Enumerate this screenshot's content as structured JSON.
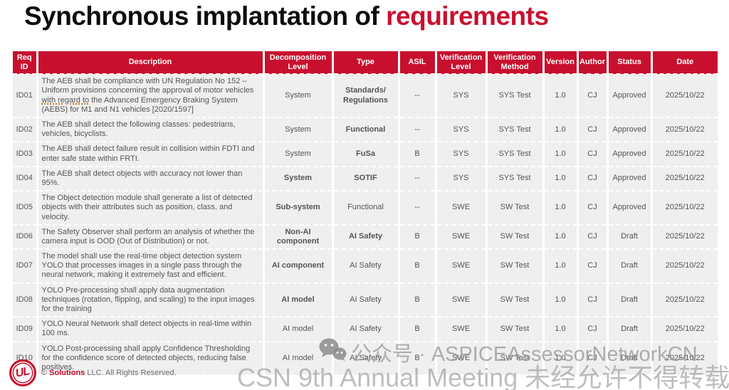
{
  "title": {
    "black": "Synchronous implantation of ",
    "red": "requirements"
  },
  "colors": {
    "brand_red": "#C8102E",
    "cell_bg": "#EFEFEF",
    "text_gray": "#555555"
  },
  "table": {
    "headers": [
      "Req ID",
      "Description",
      "Decomposition Level",
      "Type",
      "ASIL",
      "Verification Level",
      "Verification Method",
      "Version",
      "Author",
      "Status",
      "Date"
    ],
    "rows": [
      {
        "id": "ID01",
        "description": "The AEB shall be compliance with UN Regulation No 152 – Uniform provisions concerning the approval of motor vehicles with regard to the Advanced Emergency Braking System (AEBS) for M1 and N1 vehicles [2020/1597]",
        "underline_phrase": "with regard to",
        "decomposition": "System",
        "decomposition_red": false,
        "type": "Standards/ Regulations",
        "type_red": true,
        "asil": "--",
        "ver_level": "SYS",
        "ver_method": "SYS Test",
        "version": "1.0",
        "author": "CJ",
        "status": "Approved",
        "date": "2025/10/22"
      },
      {
        "id": "ID02",
        "description": "The AEB shall detect the following classes: pedestrians, vehicles, bicyclists.",
        "underline_phrase": "",
        "decomposition": "System",
        "decomposition_red": false,
        "type": "Functional",
        "type_red": true,
        "asil": "--",
        "ver_level": "SYS",
        "ver_method": "SYS Test",
        "version": "1.0",
        "author": "CJ",
        "status": "Approved",
        "date": "2025/10/22"
      },
      {
        "id": "ID03",
        "description": "The AEB shall detect failure result in collision within FDTI and enter safe state within FRTI.",
        "underline_phrase": "",
        "decomposition": "System",
        "decomposition_red": false,
        "type": "FuSa",
        "type_red": true,
        "asil": "B",
        "ver_level": "SYS",
        "ver_method": "SYS Test",
        "version": "1.0",
        "author": "CJ",
        "status": "Approved",
        "date": "2025/10/22"
      },
      {
        "id": "ID04",
        "description": "The AEB shall detect objects with accuracy not lower than 95%.",
        "underline_phrase": "",
        "decomposition": "System",
        "decomposition_red": true,
        "type": "SOTIF",
        "type_red": true,
        "asil": "--",
        "ver_level": "SYS",
        "ver_method": "SYS Test",
        "version": "1.0",
        "author": "CJ",
        "status": "Approved",
        "date": "2025/10/22"
      },
      {
        "id": "ID05",
        "description": "The Object detection module shall generate a list of detected objects with their attributes such as position, class, and velocity.",
        "underline_phrase": "",
        "decomposition": "Sub-system",
        "decomposition_red": true,
        "type": "Functional",
        "type_red": false,
        "asil": "--",
        "ver_level": "SWE",
        "ver_method": "SW Test",
        "version": "1.0",
        "author": "CJ",
        "status": "Approved",
        "date": "2025/10/22"
      },
      {
        "id": "ID06",
        "description": "The Safety Observer shall perform an analysis of whether the camera input is OOD (Out of Distribution) or not.",
        "underline_phrase": "",
        "decomposition": "Non-AI component",
        "decomposition_red": true,
        "type": "AI Safety",
        "type_red": true,
        "asil": "B",
        "ver_level": "SWE",
        "ver_method": "SW Test",
        "version": "1.0",
        "author": "CJ",
        "status": "Draft",
        "date": "2025/10/22"
      },
      {
        "id": "ID07",
        "description": "The model shall use the real-time object detection system YOLO that processes images in a single pass through the neural network, making it extremely fast and efficient.",
        "underline_phrase": "",
        "decomposition": "AI component",
        "decomposition_red": true,
        "type": "AI Safety",
        "type_red": false,
        "asil": "B",
        "ver_level": "SWE",
        "ver_method": "SW Test",
        "version": "1.0",
        "author": "CJ",
        "status": "Draft",
        "date": "2025/10/22"
      },
      {
        "id": "ID08",
        "description": "YOLO Pre-processing shall apply data augmentation techniques (rotation, flipping, and scaling) to the input images for the training",
        "underline_phrase": "",
        "decomposition": "AI model",
        "decomposition_red": true,
        "type": "AI Safety",
        "type_red": false,
        "asil": "B",
        "ver_level": "SWE",
        "ver_method": "SW Test",
        "version": "1.0",
        "author": "CJ",
        "status": "Draft",
        "date": "2025/10/22"
      },
      {
        "id": "ID09",
        "description": "YOLO Neural Network shall detect objects in real-time within 100 ms.",
        "underline_phrase": "",
        "decomposition": "AI model",
        "decomposition_red": false,
        "type": "AI Safety",
        "type_red": false,
        "asil": "B",
        "ver_level": "SWE",
        "ver_method": "SW Test",
        "version": "1.0",
        "author": "CJ",
        "status": "Draft",
        "date": "2025/10/22"
      },
      {
        "id": "ID10",
        "description": "YOLO Post-processing shall apply Confidence Thresholding for the confidence score of detected objects, reducing false positives.",
        "underline_phrase": "",
        "decomposition": "AI model",
        "decomposition_red": false,
        "type": "AI Safety",
        "type_red": false,
        "asil": "B",
        "ver_level": "SWE",
        "ver_method": "SW Test",
        "version": "1.0",
        "author": "CJ",
        "status": "Draft",
        "date": "2025/10/22"
      }
    ]
  },
  "footer": {
    "logo_text": "UL",
    "copyright_prefix": "© ",
    "brand": "Solutions",
    "copyright_suffix": " LLC. All Rights Reserved."
  },
  "watermark": {
    "line1": "公众号 · ASPICEAssessorNetworkCN",
    "line2": "CSN 9th Annual Meeting 未经允许不得转载"
  }
}
